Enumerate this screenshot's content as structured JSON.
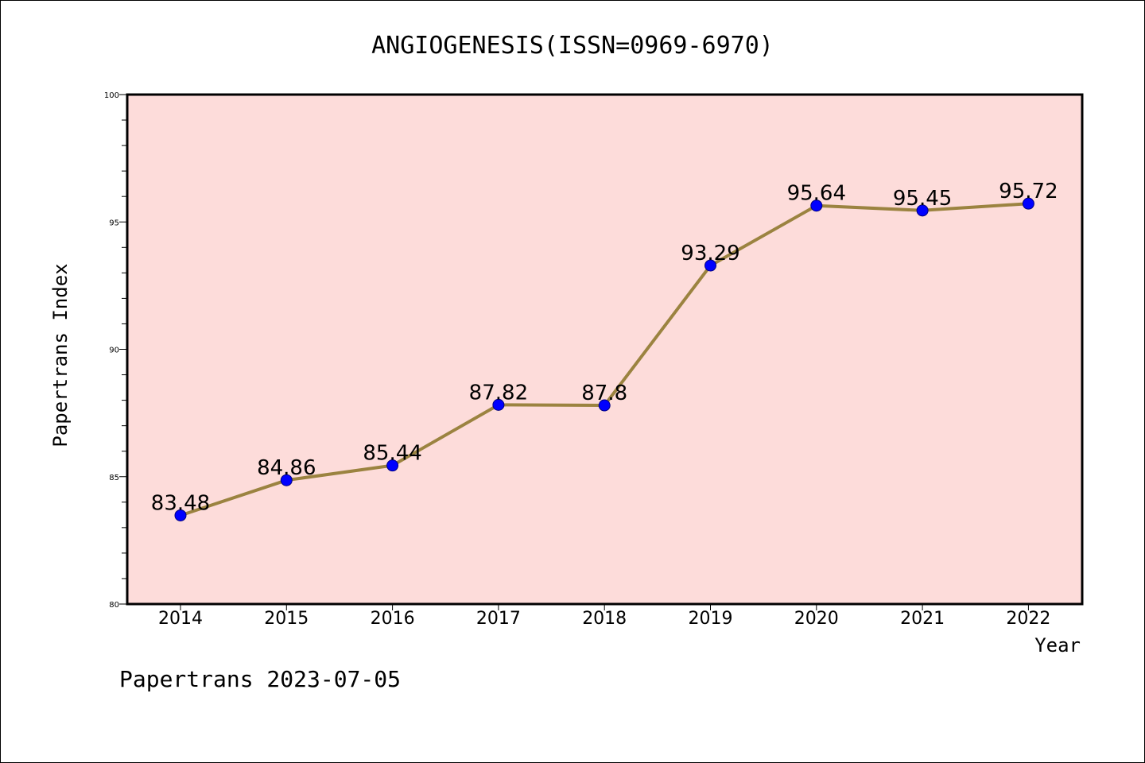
{
  "chart_data": {
    "type": "line",
    "title": "ANGIOGENESIS(ISSN=0969-6970)",
    "xlabel": "Year",
    "ylabel": "Papertrans Index",
    "x": [
      "2014",
      "2015",
      "2016",
      "2017",
      "2018",
      "2019",
      "2020",
      "2021",
      "2022"
    ],
    "series": [
      {
        "values": [
          83.48,
          84.86,
          85.44,
          87.82,
          87.8,
          93.29,
          95.64,
          95.45,
          95.72
        ],
        "labels": [
          "83.48",
          "84.86",
          "85.44",
          "87.82",
          "87.8",
          "93.29",
          "95.64",
          "95.45",
          "95.72"
        ]
      }
    ],
    "ylim": [
      80,
      100
    ],
    "yticks": [
      "80",
      "85",
      "90",
      "95",
      "100"
    ],
    "grid": false,
    "colors": {
      "background": "#FDDCDA",
      "line": "#9B8340",
      "marker": "#0000FF",
      "marker_edge": "#000080"
    }
  },
  "footer": "Papertrans 2023-07-05"
}
